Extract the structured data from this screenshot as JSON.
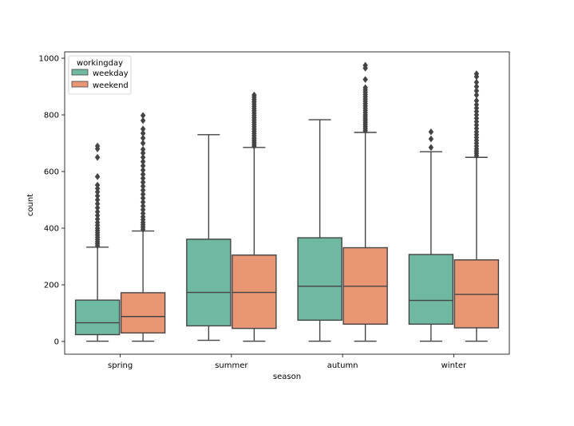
{
  "chart_data": {
    "type": "boxplot",
    "title": "",
    "xlabel": "season",
    "ylabel": "count",
    "ylim": [
      -45,
      1040
    ],
    "yticks": [
      0,
      200,
      400,
      600,
      800,
      1000
    ],
    "yticks_text": [
      "0",
      "200",
      "400",
      "600",
      "800",
      "1000"
    ],
    "categories": [
      "spring",
      "summer",
      "autumn",
      "winter"
    ],
    "legend": {
      "title": "workingday",
      "location": "top-left"
    },
    "series": [
      {
        "name": "weekday",
        "color": "#6fb8a1",
        "boxes": [
          {
            "q1": 24,
            "median": 66,
            "q3": 146,
            "whislo": 1,
            "whishi": 333,
            "fliers": [
              338,
              345,
              352,
              360,
              368,
              376,
              384,
              392,
              400,
              410,
              420,
              432,
              445,
              458,
              472,
              486,
              500,
              514,
              528,
              540,
              552,
              582,
              650,
              680,
              690
            ]
          },
          {
            "q1": 55,
            "median": 173,
            "q3": 361,
            "whislo": 4,
            "whishi": 730,
            "fliers": []
          },
          {
            "q1": 75,
            "median": 195,
            "q3": 366,
            "whislo": 1,
            "whishi": 783,
            "fliers": []
          },
          {
            "q1": 61,
            "median": 145,
            "q3": 307,
            "whislo": 1,
            "whishi": 670,
            "fliers": [
              685,
              715,
              740
            ]
          }
        ]
      },
      {
        "name": "weekend",
        "color": "#e99675",
        "boxes": [
          {
            "q1": 30,
            "median": 88,
            "q3": 172,
            "whislo": 1,
            "whishi": 390,
            "fliers": [
              396,
              404,
              412,
              420,
              430,
              440,
              452,
              465,
              478,
              492,
              506,
              520,
              534,
              548,
              562,
              576,
              590,
              605,
              620,
              635,
              650,
              665,
              678,
              700,
              718,
              735,
              750,
              780,
              798
            ]
          },
          {
            "q1": 46,
            "median": 173,
            "q3": 305,
            "whislo": 1,
            "whishi": 685,
            "fliers": [
              690,
              697,
              704,
              711,
              718,
              726,
              734,
              742,
              750,
              758,
              766,
              774,
              782,
              790,
              798,
              806,
              814,
              822,
              830,
              838,
              846,
              854,
              862,
              870
            ]
          },
          {
            "q1": 61,
            "median": 195,
            "q3": 331,
            "whislo": 1,
            "whishi": 738,
            "fliers": [
              744,
              751,
              758,
              765,
              772,
              779,
              786,
              793,
              800,
              808,
              816,
              824,
              832,
              840,
              848,
              856,
              864,
              872,
              880,
              888,
              896,
              925,
              965,
              975
            ]
          },
          {
            "q1": 48,
            "median": 166,
            "q3": 288,
            "whislo": 1,
            "whishi": 650,
            "fliers": [
              656,
              664,
              672,
              680,
              690,
              700,
              710,
              720,
              730,
              740,
              752,
              764,
              776,
              788,
              800,
              812,
              824,
              836,
              850,
              870,
              885,
              900,
              915,
              935,
              945
            ]
          }
        ]
      }
    ]
  }
}
